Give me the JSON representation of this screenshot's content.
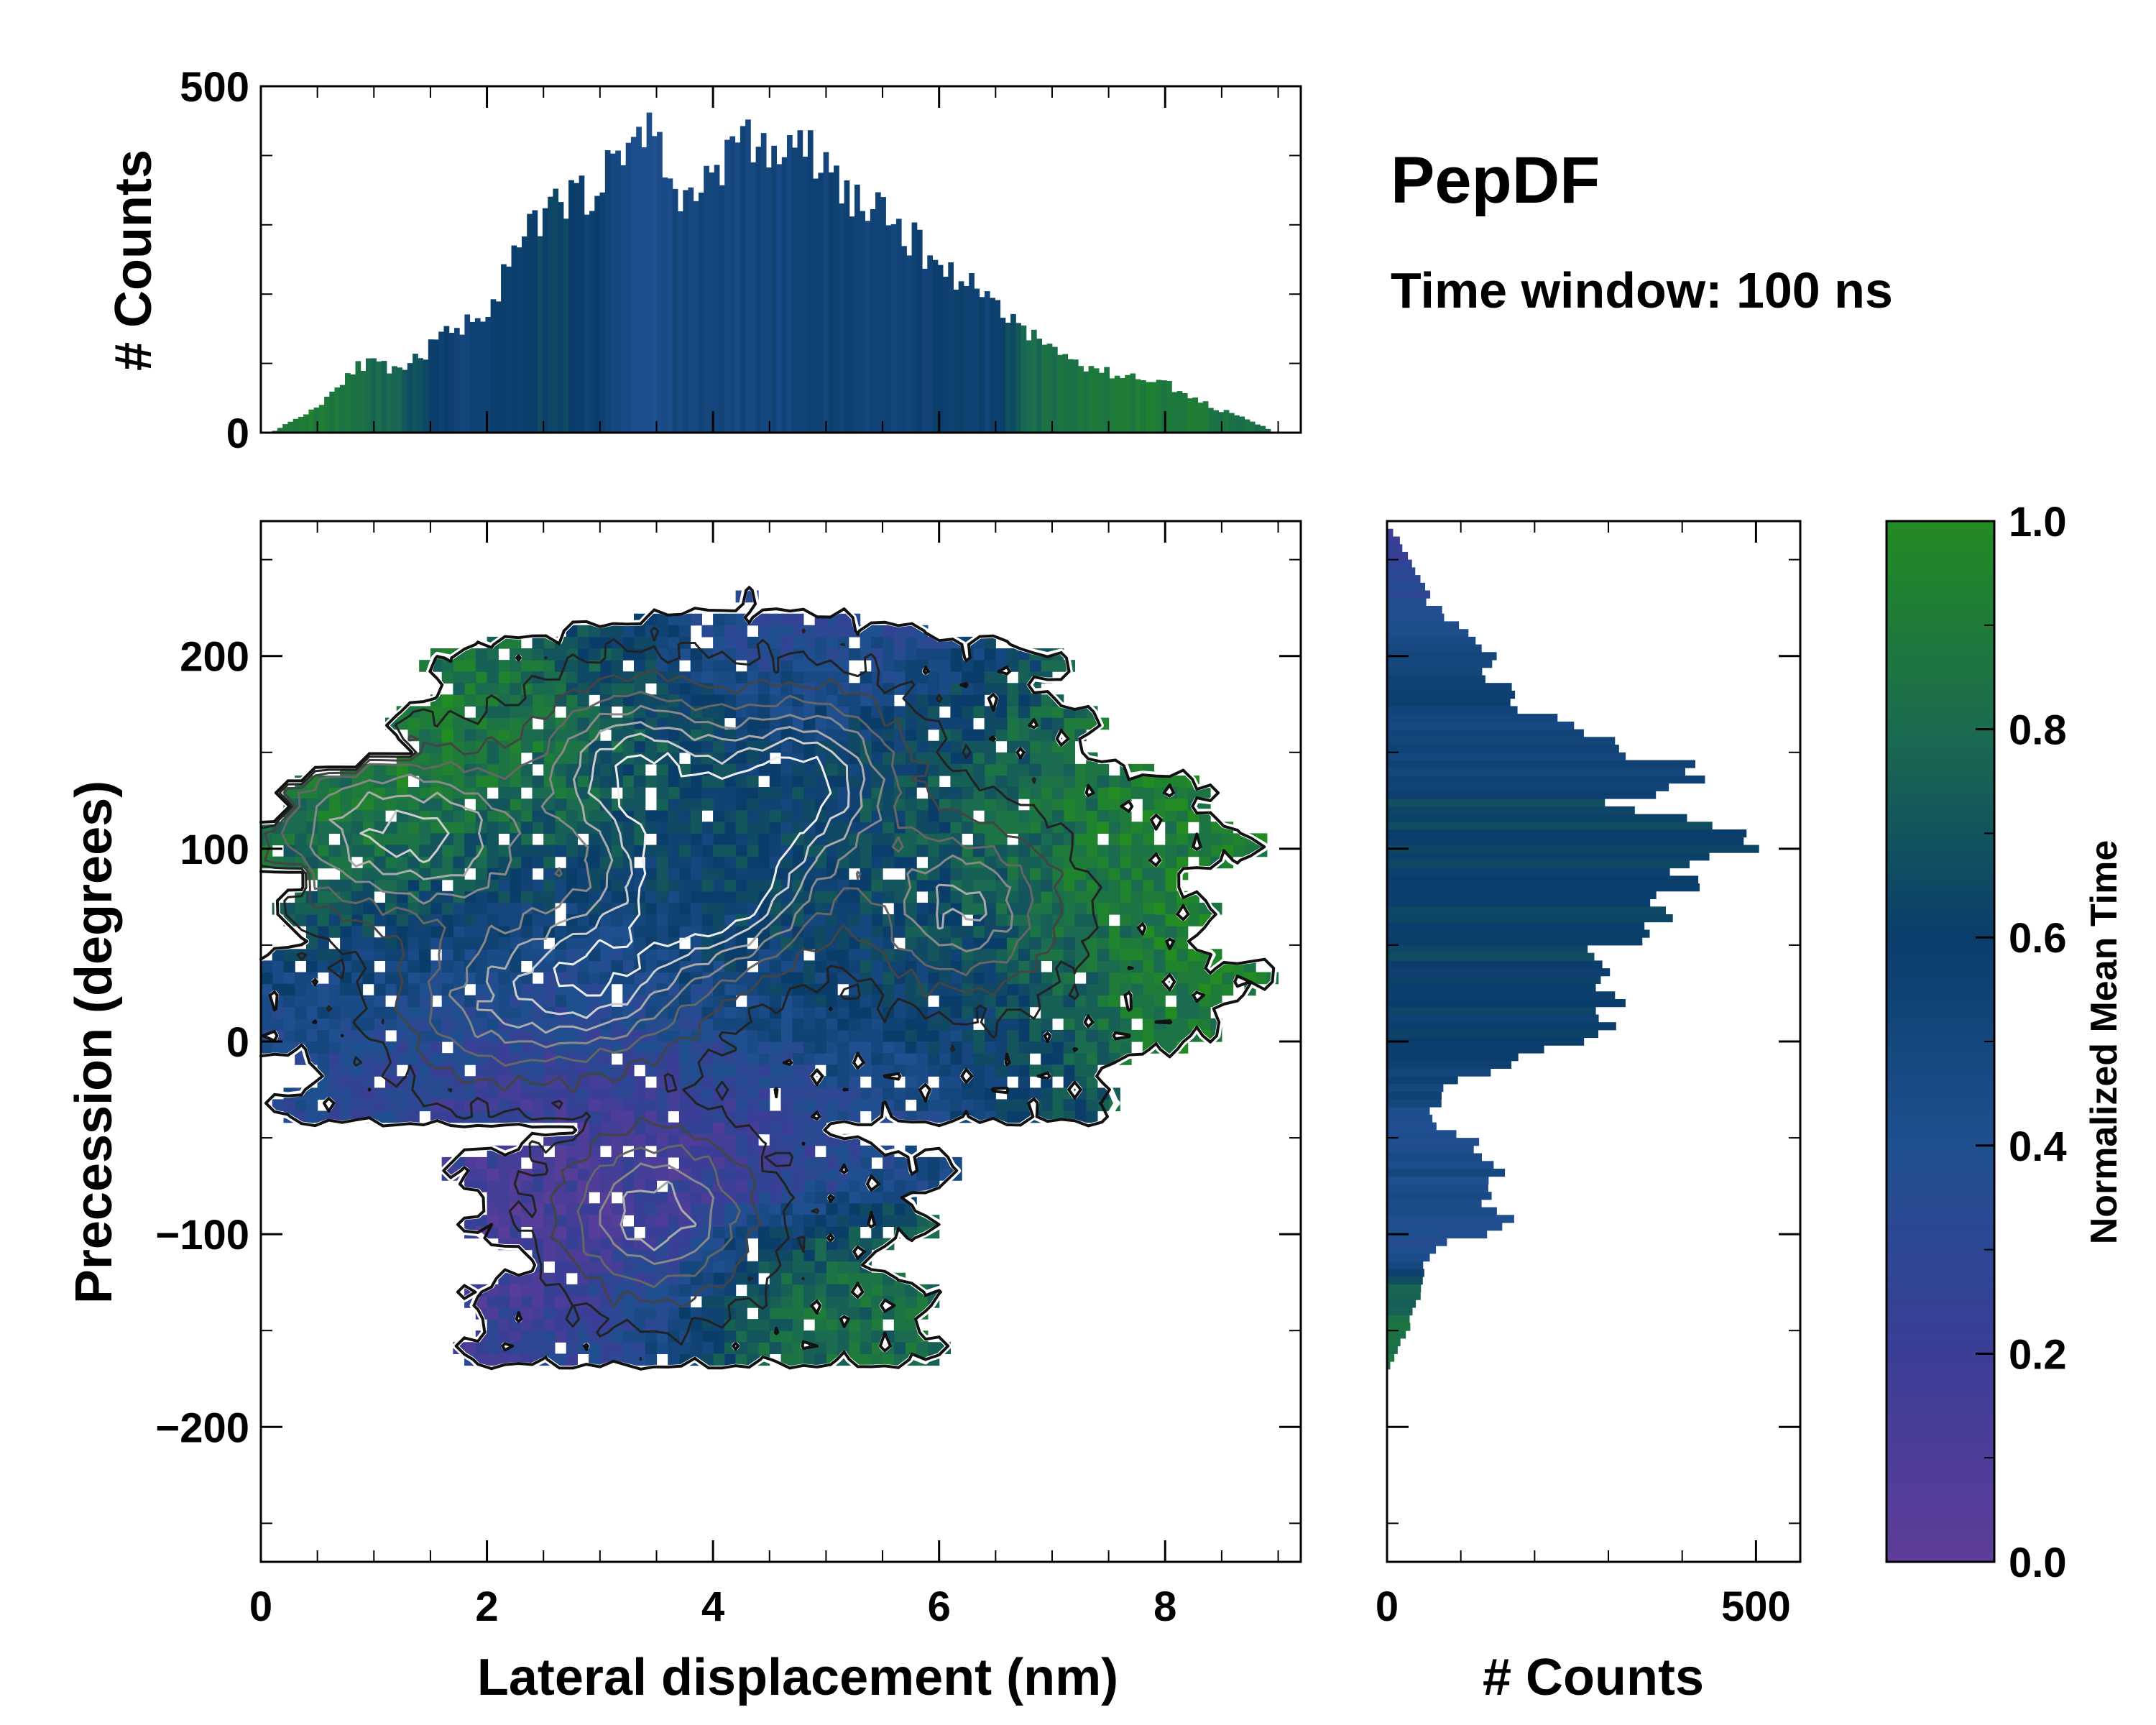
{
  "title": "PepDF",
  "subtitle": "Time window: 100 ns",
  "chart_data": [
    {
      "id": "joint",
      "type": "heatmap",
      "xlabel": "Lateral displacement (nm)",
      "ylabel": "Precession (degrees)",
      "xlim": [
        0,
        9.2
      ],
      "ylim": [
        -270,
        270
      ],
      "xticks": [
        0,
        2,
        4,
        6,
        8
      ],
      "xtick_labels": [
        "0",
        "2",
        "4",
        "6",
        "8"
      ],
      "yticks": [
        -200,
        -100,
        0,
        100,
        200
      ],
      "ytick_labels": [
        "−200",
        "−100",
        "0",
        "100",
        "200"
      ],
      "colorbar": {
        "label": "Normalized Mean Time",
        "range": [
          0.0,
          1.0
        ],
        "ticks": [
          0.0,
          0.2,
          0.4,
          0.6,
          0.8,
          1.0
        ],
        "tick_labels": [
          "0.0",
          "0.2",
          "0.4",
          "0.6",
          "0.8",
          "1.0"
        ],
        "colors": [
          "#5e3c99",
          "#3b3e96",
          "#1f4f8f",
          "#0b3d6b",
          "#1a6b4f",
          "#228b22"
        ]
      },
      "blobs": [
        {
          "x": 1.0,
          "y": 110,
          "sx": 0.9,
          "sy": 45,
          "t": 0.93
        },
        {
          "x": 2.4,
          "y": 160,
          "sx": 1.2,
          "sy": 55,
          "t": 0.88
        },
        {
          "x": 4.5,
          "y": 220,
          "sx": 1.0,
          "sy": 40,
          "t": 0.25
        },
        {
          "x": 5.0,
          "y": 120,
          "sx": 1.4,
          "sy": 50,
          "t": 0.55
        },
        {
          "x": 7.4,
          "y": 90,
          "sx": 1.4,
          "sy": 55,
          "t": 0.95
        },
        {
          "x": 7.8,
          "y": 40,
          "sx": 0.8,
          "sy": 40,
          "t": 0.92
        },
        {
          "x": 2.0,
          "y": 40,
          "sx": 1.3,
          "sy": 45,
          "t": 0.35
        },
        {
          "x": 3.5,
          "y": -30,
          "sx": 1.2,
          "sy": 40,
          "t": 0.15
        },
        {
          "x": 3.0,
          "y": -120,
          "sx": 0.7,
          "sy": 35,
          "t": 0.05
        },
        {
          "x": 4.8,
          "y": -140,
          "sx": 1.2,
          "sy": 30,
          "t": 0.82
        },
        {
          "x": 4.6,
          "y": 40,
          "sx": 1.1,
          "sy": 40,
          "t": 0.62
        },
        {
          "x": 6.2,
          "y": 20,
          "sx": 0.9,
          "sy": 40,
          "t": 0.48
        }
      ],
      "density_peaks": [
        {
          "x": 4.0,
          "y": 82,
          "w": 1.0
        },
        {
          "x": 3.3,
          "y": 140,
          "w": 0.75
        },
        {
          "x": 4.8,
          "y": 135,
          "w": 0.8
        },
        {
          "x": 3.0,
          "y": 35,
          "w": 0.7
        },
        {
          "x": 3.5,
          "y": -90,
          "w": 0.6
        },
        {
          "x": 6.2,
          "y": 70,
          "w": 0.55
        },
        {
          "x": 1.7,
          "y": 105,
          "w": 0.5
        },
        {
          "x": 0.8,
          "y": 110,
          "w": 0.45
        },
        {
          "x": 2.0,
          "y": 20,
          "w": 0.4
        }
      ]
    },
    {
      "id": "top-histogram",
      "type": "bar",
      "ylabel": "# Counts",
      "xlim": [
        0,
        9.2
      ],
      "ylim": [
        0,
        500
      ],
      "yticks": [
        0,
        500
      ],
      "ytick_labels": [
        "0",
        "500"
      ],
      "bin_width": 0.046,
      "x_nodes": [
        0.1,
        0.5,
        0.8,
        1.0,
        1.2,
        1.6,
        2.0,
        2.3,
        2.6,
        3.0,
        3.35,
        3.55,
        3.7,
        4.0,
        4.3,
        4.6,
        4.8,
        5.2,
        5.6,
        6.0,
        6.4,
        6.8,
        7.2,
        7.6,
        7.9,
        8.2,
        8.6,
        8.9
      ],
      "count_nodes": [
        3,
        40,
        95,
        100,
        85,
        140,
        180,
        280,
        330,
        360,
        450,
        400,
        320,
        390,
        420,
        400,
        410,
        340,
        300,
        240,
        200,
        140,
        100,
        80,
        80,
        50,
        25,
        5
      ],
      "time_nodes": [
        0.9,
        0.9,
        0.85,
        0.8,
        0.75,
        0.55,
        0.55,
        0.6,
        0.65,
        0.55,
        0.4,
        0.45,
        0.5,
        0.5,
        0.5,
        0.5,
        0.55,
        0.55,
        0.5,
        0.6,
        0.55,
        0.8,
        0.85,
        0.9,
        0.9,
        0.9,
        0.85,
        0.8
      ]
    },
    {
      "id": "right-histogram",
      "type": "bar",
      "xlabel": "# Counts",
      "xlim": [
        0,
        560
      ],
      "xticks": [
        0,
        500
      ],
      "xtick_labels": [
        "0",
        "500"
      ],
      "ylim": [
        -270,
        270
      ],
      "bin_height": 4,
      "y_nodes": [
        -170,
        -160,
        -145,
        -130,
        -110,
        -96,
        -85,
        -70,
        -55,
        -45,
        -25,
        -10,
        0,
        15,
        30,
        45,
        58,
        75,
        90,
        105,
        120,
        138,
        150,
        165,
        180,
        200,
        225,
        250,
        265
      ],
      "count_nodes": [
        5,
        18,
        35,
        45,
        60,
        170,
        120,
        155,
        120,
        55,
        80,
        200,
        250,
        320,
        300,
        280,
        360,
        410,
        420,
        500,
        300,
        420,
        300,
        220,
        160,
        130,
        60,
        30,
        3
      ],
      "time_nodes": [
        0.9,
        0.85,
        0.8,
        0.75,
        0.4,
        0.4,
        0.45,
        0.45,
        0.4,
        0.4,
        0.55,
        0.55,
        0.6,
        0.6,
        0.6,
        0.65,
        0.6,
        0.6,
        0.6,
        0.6,
        0.65,
        0.5,
        0.5,
        0.5,
        0.6,
        0.45,
        0.35,
        0.25,
        0.15
      ]
    }
  ]
}
